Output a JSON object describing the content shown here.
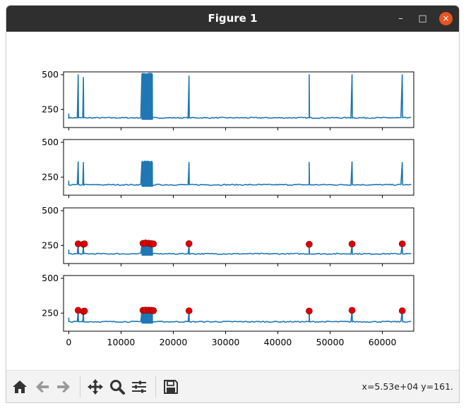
{
  "window": {
    "title": "Figure 1",
    "controls": {
      "minimize": "–",
      "maximize": "□",
      "close": "×"
    }
  },
  "toolbar": {
    "buttons": [
      "home-icon",
      "back-icon",
      "forward-icon",
      "pan-icon",
      "zoom-icon",
      "subplots-icon",
      "save-icon"
    ],
    "status": "x=5.53e+04 y=161."
  },
  "colors": {
    "line": "#1f77b4",
    "marker": "#e00000",
    "titlebar": "#2f2f2f",
    "close": "#e95420"
  },
  "chart_data": {
    "type": "line",
    "xlim": [
      -1000,
      66000
    ],
    "ylim": [
      120,
      520
    ],
    "x_ticks": [
      0,
      10000,
      20000,
      30000,
      40000,
      50000,
      60000
    ],
    "x_tick_labels": [
      "0",
      "10000",
      "20000",
      "30000",
      "40000",
      "50000",
      "60000"
    ],
    "y_ticks": [
      250,
      500
    ],
    "y_tick_labels": [
      "250",
      "500"
    ],
    "x_range": [
      0,
      65536
    ],
    "panels": [
      {
        "baseline": 190,
        "spikes": [
          [
            1800,
            500
          ],
          [
            2800,
            480
          ],
          [
            23000,
            490
          ],
          [
            46000,
            500
          ],
          [
            54200,
            500
          ],
          [
            63800,
            500
          ]
        ],
        "bursts": [
          [
            14000,
            16000,
            510
          ]
        ],
        "peaks": []
      },
      {
        "baseline": 195,
        "spikes": [
          [
            1800,
            360
          ],
          [
            2800,
            355
          ],
          [
            23000,
            355
          ],
          [
            46000,
            355
          ],
          [
            54200,
            360
          ],
          [
            63800,
            355
          ]
        ],
        "bursts": [
          [
            14000,
            16000,
            365
          ]
        ],
        "peaks": []
      },
      {
        "baseline": 190,
        "spikes": [
          [
            1800,
            255
          ],
          [
            2800,
            250
          ],
          [
            23000,
            255
          ],
          [
            46000,
            250
          ],
          [
            54200,
            255
          ],
          [
            63800,
            255
          ]
        ],
        "bursts": [
          [
            14000,
            16000,
            260
          ]
        ],
        "peaks": [
          [
            1800,
            262
          ],
          [
            2800,
            258
          ],
          [
            3000,
            262
          ],
          [
            14200,
            265
          ],
          [
            14700,
            268
          ],
          [
            15300,
            266
          ],
          [
            15800,
            263
          ],
          [
            16200,
            262
          ],
          [
            23000,
            263
          ],
          [
            46000,
            258
          ],
          [
            54200,
            261
          ],
          [
            63800,
            262
          ]
        ]
      },
      {
        "baseline": 188,
        "spikes": [
          [
            1800,
            268
          ],
          [
            2800,
            262
          ],
          [
            23000,
            265
          ],
          [
            46000,
            265
          ],
          [
            54200,
            270
          ],
          [
            63800,
            265
          ]
        ],
        "bursts": [
          [
            14000,
            16000,
            270
          ]
        ],
        "peaks": [
          [
            1800,
            270
          ],
          [
            2800,
            262
          ],
          [
            3000,
            265
          ],
          [
            14200,
            270
          ],
          [
            14700,
            272
          ],
          [
            15300,
            271
          ],
          [
            15800,
            270
          ],
          [
            16200,
            268
          ],
          [
            23000,
            267
          ],
          [
            46000,
            265
          ],
          [
            54200,
            270
          ],
          [
            63800,
            267
          ]
        ]
      }
    ]
  }
}
